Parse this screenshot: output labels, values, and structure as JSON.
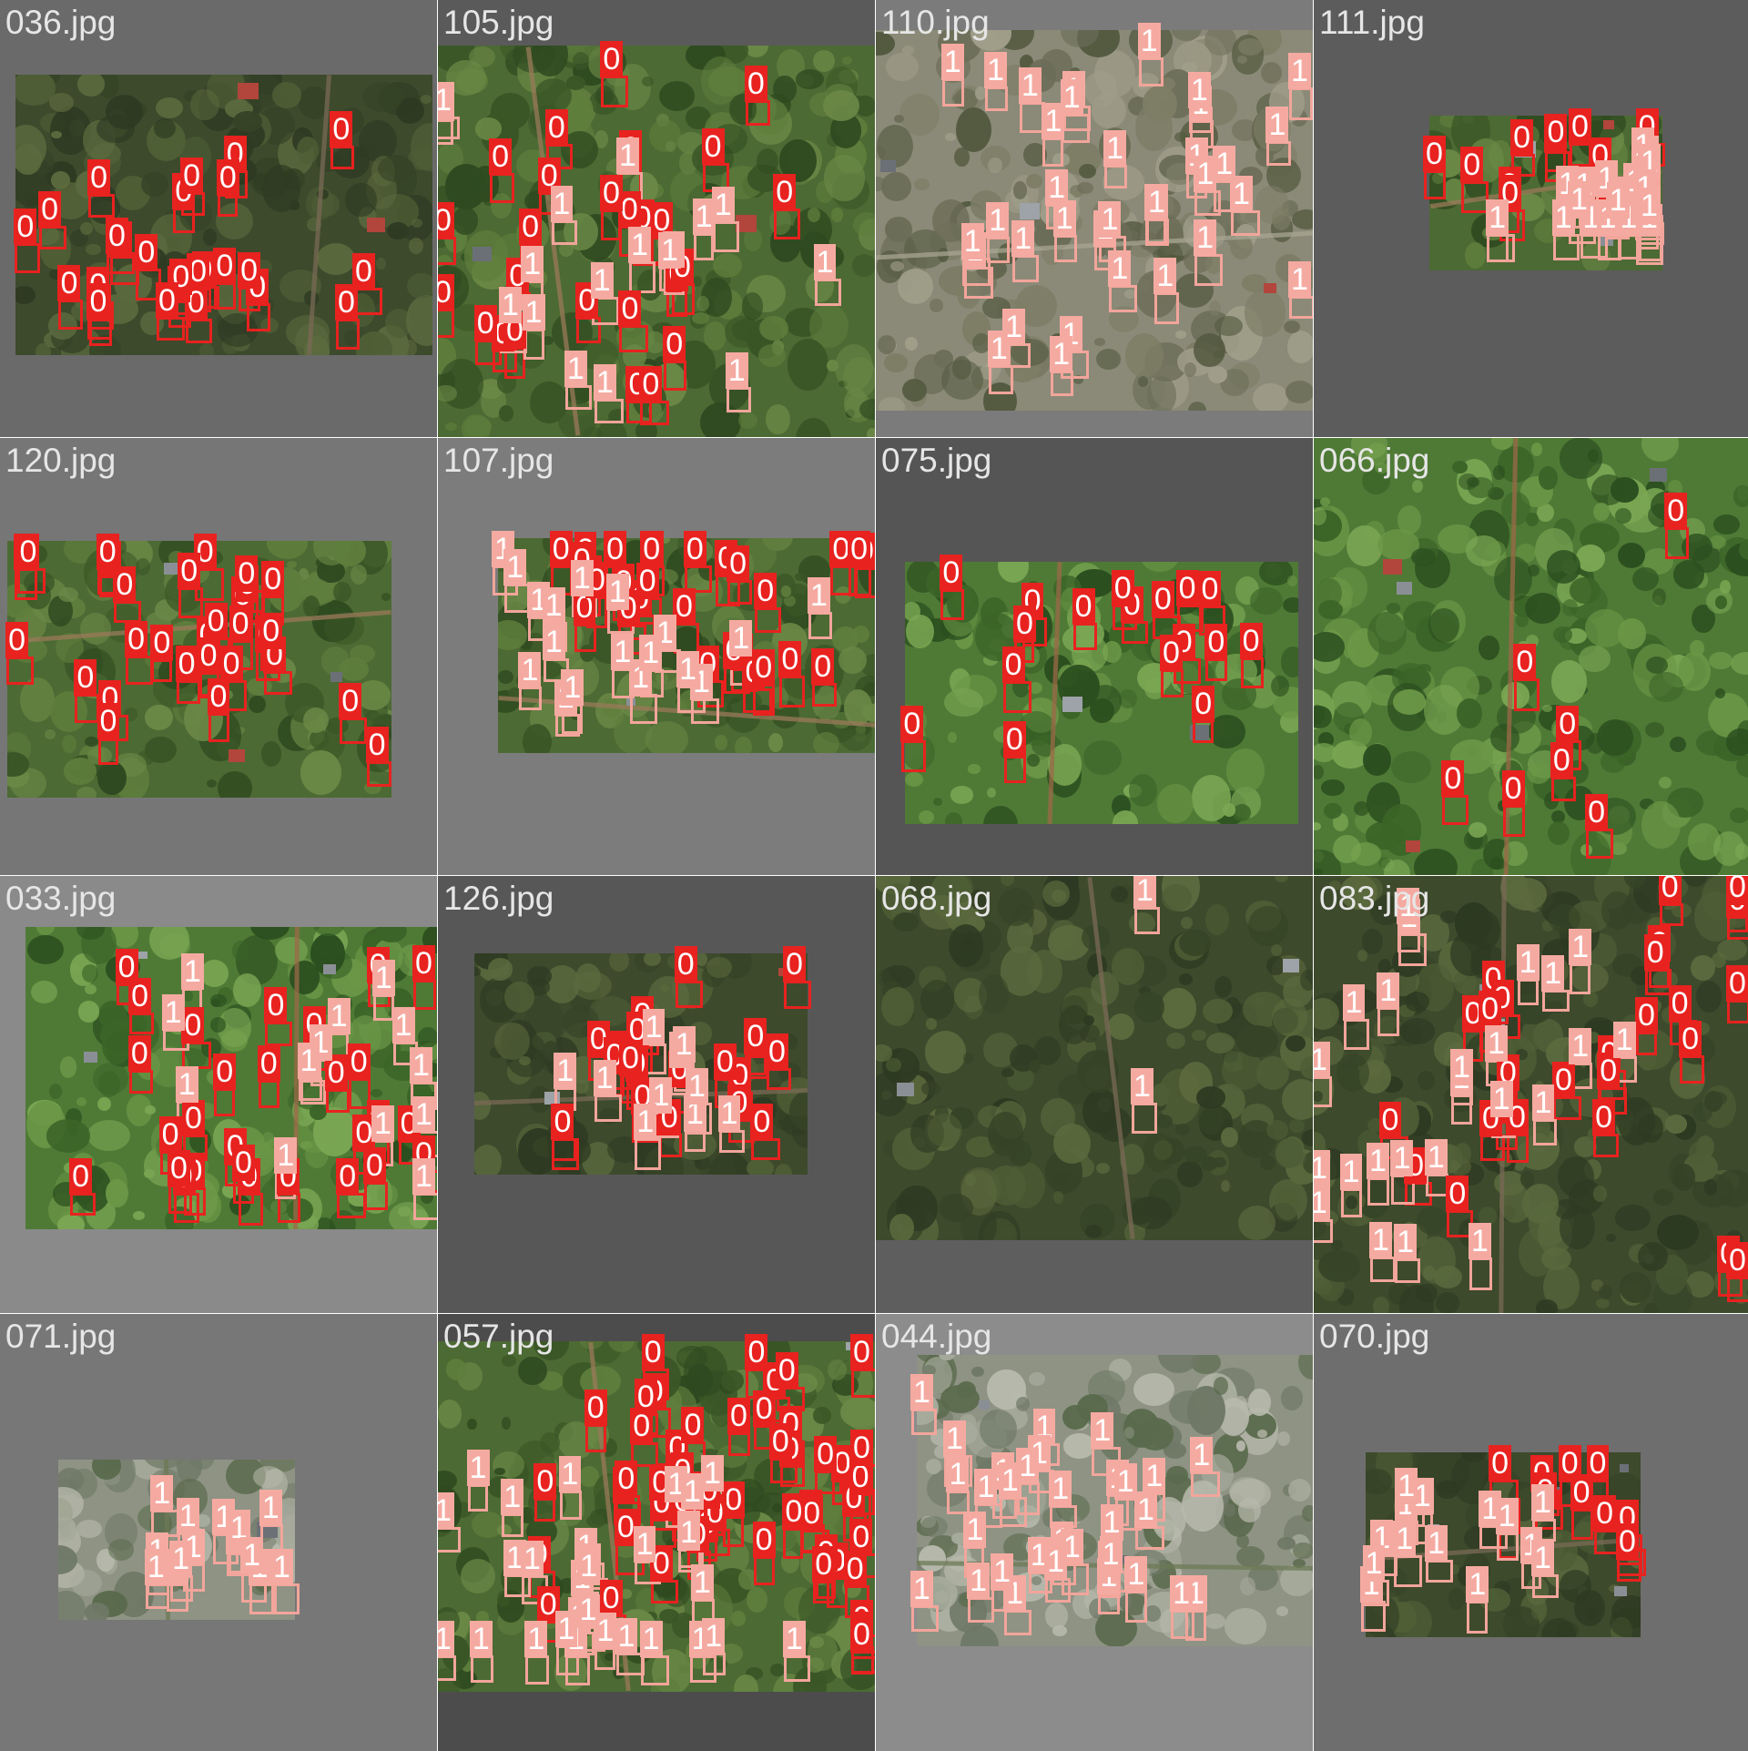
{
  "grid": {
    "columns": 4,
    "rows": 4
  },
  "classes": {
    "0": {
      "box_color": "#e8221f",
      "label_bg": "#e8221f"
    },
    "1": {
      "box_color": "#f2a59b",
      "label_bg": "#f5aaa1"
    }
  },
  "tiles": [
    {
      "label": "036.jpg",
      "bg": "#6a6a6a",
      "scene": "forest-dark"
    },
    {
      "label": "105.jpg",
      "bg": "#5a5a5a",
      "scene": "green-field"
    },
    {
      "label": "110.jpg",
      "bg": "#7b7b7b",
      "scene": "dry-field"
    },
    {
      "label": "111.jpg",
      "bg": "#5c5c5c",
      "scene": "green-field"
    },
    {
      "label": "120.jpg",
      "bg": "#767676",
      "scene": "green-field"
    },
    {
      "label": "107.jpg",
      "bg": "#7c7c7c",
      "scene": "green-field"
    },
    {
      "label": "075.jpg",
      "bg": "#555555",
      "scene": "green-bright"
    },
    {
      "label": "066.jpg",
      "bg": "#6b6b6b",
      "scene": "green-bright"
    },
    {
      "label": "033.jpg",
      "bg": "#8a8a8a",
      "scene": "green-bright"
    },
    {
      "label": "126.jpg",
      "bg": "#575757",
      "scene": "forest-dark"
    },
    {
      "label": "068.jpg",
      "bg": "#5e5e5e",
      "scene": "forest-dark"
    },
    {
      "label": "083.jpg",
      "bg": "#4f4f4f",
      "scene": "forest-dark"
    },
    {
      "label": "071.jpg",
      "bg": "#777777",
      "scene": "paddy"
    },
    {
      "label": "057.jpg",
      "bg": "#4c4c4c",
      "scene": "green-field"
    },
    {
      "label": "044.jpg",
      "bg": "#8c8c8c",
      "scene": "paddy"
    },
    {
      "label": "070.jpg",
      "bg": "#6e6e6e",
      "scene": "forest-dark"
    }
  ],
  "box_counts": [
    {
      "0": 26,
      "1": 0
    },
    {
      "0": 26,
      "1": 17
    },
    {
      "0": 0,
      "1": 34
    },
    {
      "0": 10,
      "1": 22
    },
    {
      "0": 30,
      "1": 0
    },
    {
      "0": 28,
      "1": 18
    },
    {
      "0": 17,
      "1": 0
    },
    {
      "0": 7,
      "1": 0
    },
    {
      "0": 28,
      "1": 14
    },
    {
      "0": 21,
      "1": 10
    },
    {
      "0": 0,
      "1": 2
    },
    {
      "0": 26,
      "1": 24
    },
    {
      "0": 0,
      "1": 14
    },
    {
      "0": 52,
      "1": 30
    },
    {
      "0": 0,
      "1": 32
    },
    {
      "0": 12,
      "1": 14
    }
  ]
}
